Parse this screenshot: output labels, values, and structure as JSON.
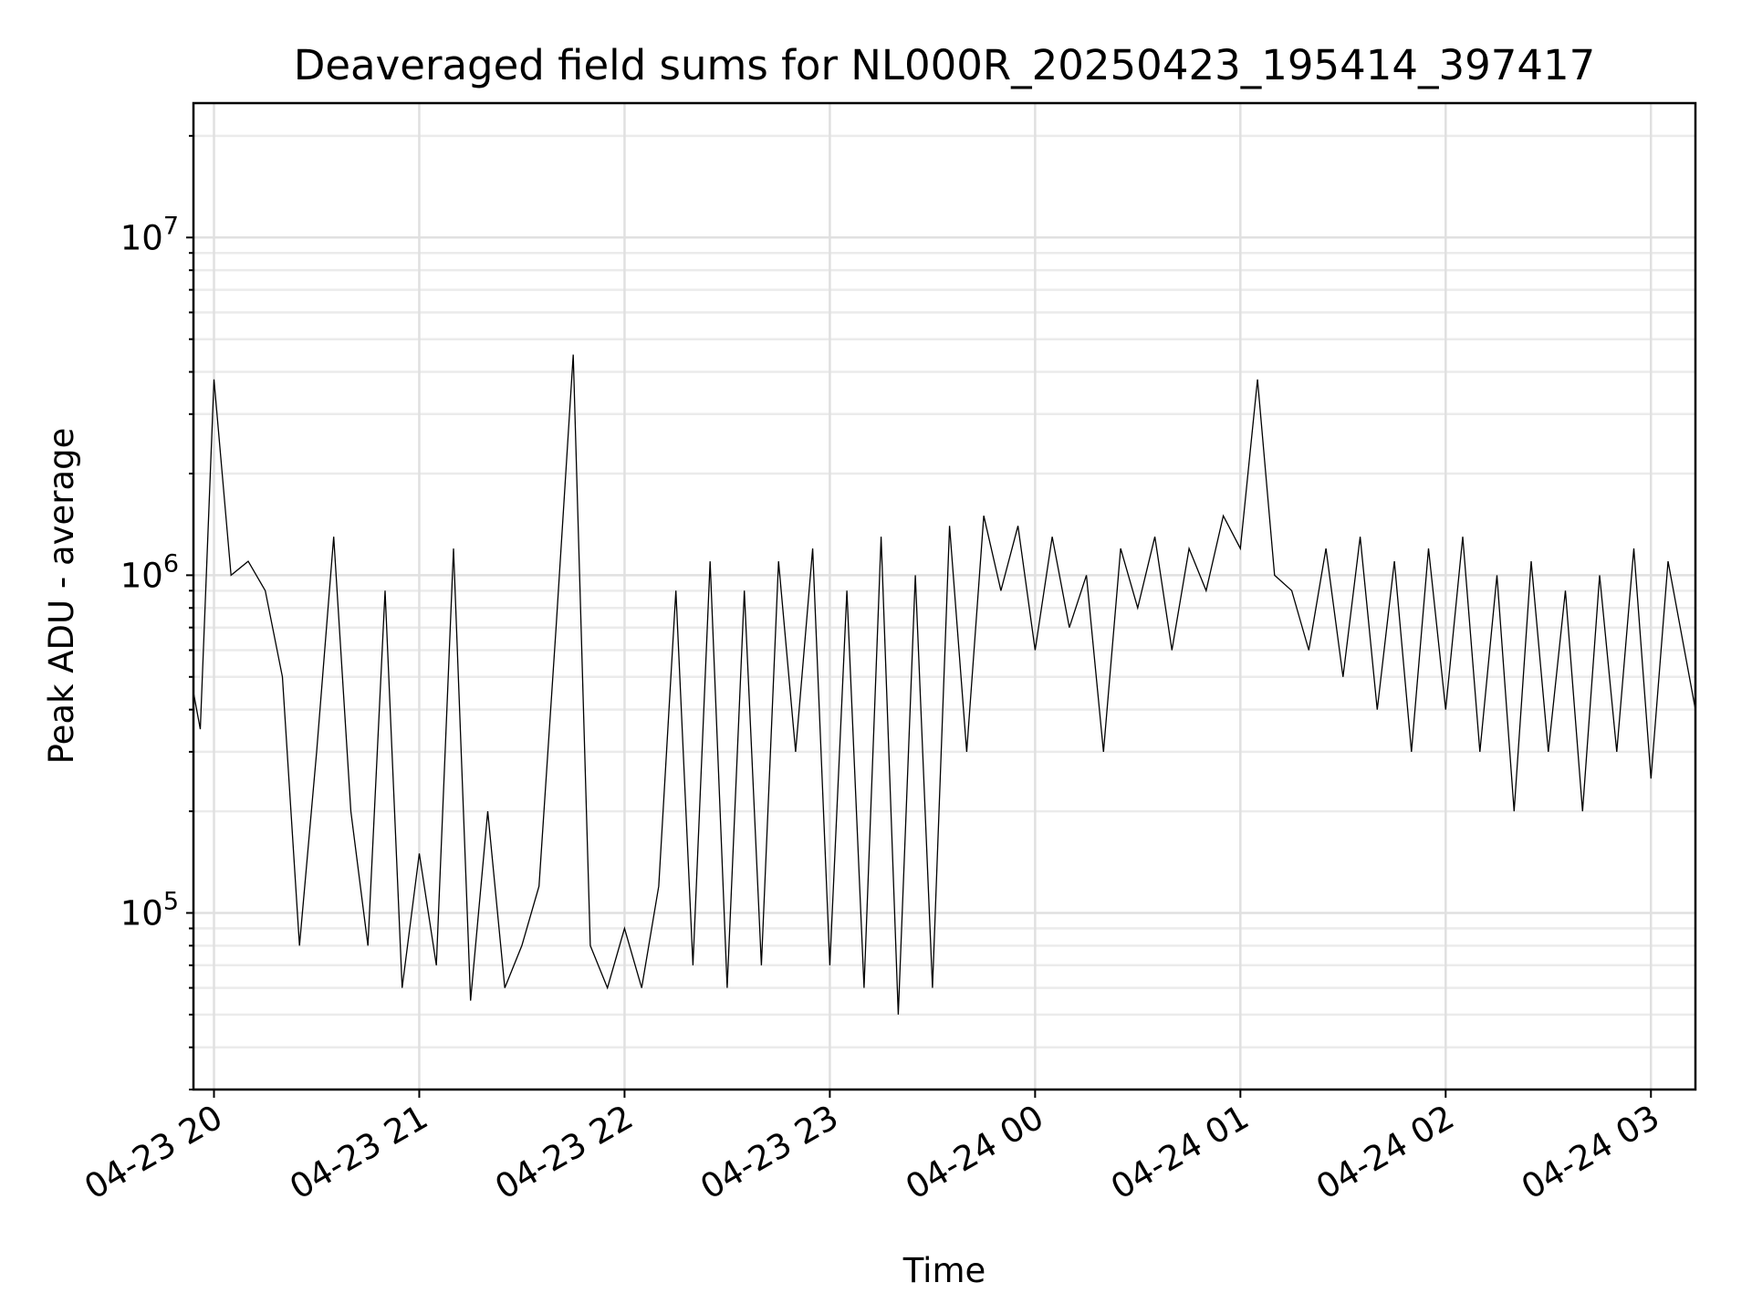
{
  "chart_data": {
    "type": "line",
    "title": "Deaveraged field sums for NL000R_20250423_195414_397417",
    "xlabel": "Time",
    "ylabel": "Peak ADU - average",
    "y_scale": "log",
    "ylim": [
      30000,
      25000000
    ],
    "xlim": [
      "2025-04-23 19:54",
      "2025-04-24 03:13"
    ],
    "grid": true,
    "x_ticks": [
      {
        "t": "2025-04-23 20:00",
        "label": "04-23 20"
      },
      {
        "t": "2025-04-23 21:00",
        "label": "04-23 21"
      },
      {
        "t": "2025-04-23 22:00",
        "label": "04-23 22"
      },
      {
        "t": "2025-04-23 23:00",
        "label": "04-23 23"
      },
      {
        "t": "2025-04-24 00:00",
        "label": "04-24 00"
      },
      {
        "t": "2025-04-24 01:00",
        "label": "04-24 01"
      },
      {
        "t": "2025-04-24 02:00",
        "label": "04-24 02"
      },
      {
        "t": "2025-04-24 03:00",
        "label": "04-24 03"
      }
    ],
    "y_ticks": [
      {
        "value": 100000,
        "base": "10",
        "exp": "5"
      },
      {
        "value": 1000000,
        "base": "10",
        "exp": "6"
      },
      {
        "value": 10000000,
        "base": "10",
        "exp": "7"
      }
    ],
    "series": [
      {
        "color": "#000000",
        "x": [
          "2025-04-23 19:54",
          "2025-04-23 19:56",
          "2025-04-23 20:00",
          "2025-04-23 20:05",
          "2025-04-23 20:10",
          "2025-04-23 20:15",
          "2025-04-23 20:20",
          "2025-04-23 20:25",
          "2025-04-23 20:30",
          "2025-04-23 20:35",
          "2025-04-23 20:40",
          "2025-04-23 20:45",
          "2025-04-23 20:50",
          "2025-04-23 20:55",
          "2025-04-23 21:00",
          "2025-04-23 21:05",
          "2025-04-23 21:10",
          "2025-04-23 21:15",
          "2025-04-23 21:20",
          "2025-04-23 21:25",
          "2025-04-23 21:30",
          "2025-04-23 21:35",
          "2025-04-23 21:40",
          "2025-04-23 21:45",
          "2025-04-23 21:50",
          "2025-04-23 21:55",
          "2025-04-23 22:00",
          "2025-04-23 22:05",
          "2025-04-23 22:10",
          "2025-04-23 22:15",
          "2025-04-23 22:20",
          "2025-04-23 22:25",
          "2025-04-23 22:30",
          "2025-04-23 22:35",
          "2025-04-23 22:40",
          "2025-04-23 22:45",
          "2025-04-23 22:50",
          "2025-04-23 22:55",
          "2025-04-23 23:00",
          "2025-04-23 23:05",
          "2025-04-23 23:10",
          "2025-04-23 23:15",
          "2025-04-23 23:20",
          "2025-04-23 23:25",
          "2025-04-23 23:30",
          "2025-04-23 23:35",
          "2025-04-23 23:40",
          "2025-04-23 23:45",
          "2025-04-23 23:50",
          "2025-04-23 23:55",
          "2025-04-24 00:00",
          "2025-04-24 00:05",
          "2025-04-24 00:10",
          "2025-04-24 00:15",
          "2025-04-24 00:20",
          "2025-04-24 00:25",
          "2025-04-24 00:30",
          "2025-04-24 00:35",
          "2025-04-24 00:40",
          "2025-04-24 00:45",
          "2025-04-24 00:50",
          "2025-04-24 00:55",
          "2025-04-24 01:00",
          "2025-04-24 01:05",
          "2025-04-24 01:10",
          "2025-04-24 01:15",
          "2025-04-24 01:20",
          "2025-04-24 01:25",
          "2025-04-24 01:30",
          "2025-04-24 01:35",
          "2025-04-24 01:40",
          "2025-04-24 01:45",
          "2025-04-24 01:50",
          "2025-04-24 01:55",
          "2025-04-24 02:00",
          "2025-04-24 02:05",
          "2025-04-24 02:10",
          "2025-04-24 02:15",
          "2025-04-24 02:20",
          "2025-04-24 02:25",
          "2025-04-24 02:30",
          "2025-04-24 02:35",
          "2025-04-24 02:40",
          "2025-04-24 02:45",
          "2025-04-24 02:50",
          "2025-04-24 02:55",
          "2025-04-24 03:00",
          "2025-04-24 03:05",
          "2025-04-24 03:13"
        ],
        "y": [
          450000,
          350000,
          3800000,
          1000000,
          1100000,
          900000,
          500000,
          80000,
          300000,
          1300000,
          200000,
          80000,
          900000,
          60000,
          150000,
          70000,
          1200000,
          55000,
          200000,
          60000,
          80000,
          120000,
          700000,
          4500000,
          80000,
          60000,
          90000,
          60000,
          120000,
          900000,
          70000,
          1100000,
          60000,
          900000,
          70000,
          1100000,
          300000,
          1200000,
          70000,
          900000,
          60000,
          1300000,
          50000,
          1000000,
          60000,
          1400000,
          300000,
          1500000,
          900000,
          1400000,
          600000,
          1300000,
          700000,
          1000000,
          300000,
          1200000,
          800000,
          1300000,
          600000,
          1200000,
          900000,
          1500000,
          1200000,
          3800000,
          1000000,
          900000,
          600000,
          1200000,
          500000,
          1300000,
          400000,
          1100000,
          300000,
          1200000,
          400000,
          1300000,
          300000,
          1000000,
          200000,
          1100000,
          300000,
          900000,
          200000,
          1000000,
          300000,
          1200000,
          250000,
          1100000,
          400000
        ]
      }
    ]
  }
}
